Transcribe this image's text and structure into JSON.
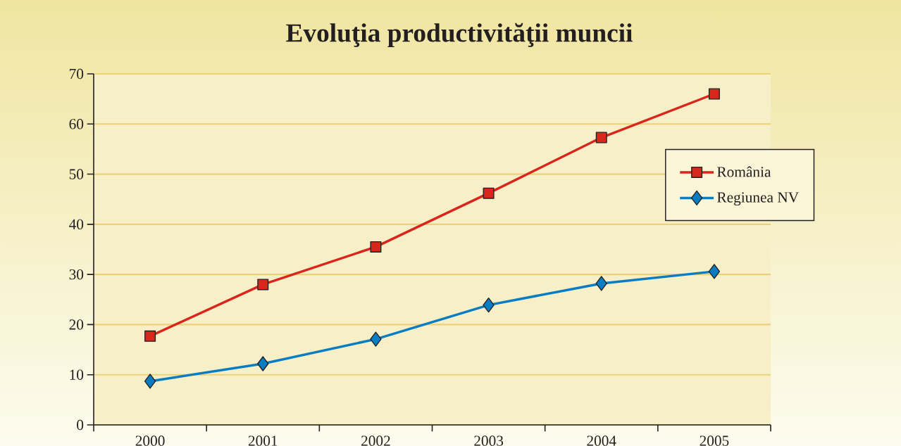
{
  "chart_data": {
    "type": "line",
    "title": "Evoluţia productivităţii muncii",
    "categories": [
      "2000",
      "2001",
      "2002",
      "2003",
      "2004",
      "2005"
    ],
    "series": [
      {
        "name": "România",
        "color": "#d9261c",
        "marker": "square",
        "values": [
          17.7,
          28.0,
          35.5,
          46.2,
          57.3,
          66.0
        ]
      },
      {
        "name": "Regiunea NV",
        "color": "#0a7dc2",
        "marker": "diamond",
        "values": [
          8.7,
          12.2,
          17.1,
          23.9,
          28.2,
          30.6
        ]
      }
    ],
    "ylim": [
      0,
      70
    ],
    "yticks": [
      0,
      10,
      20,
      30,
      40,
      50,
      60,
      70
    ],
    "grid": "y",
    "legend": "right",
    "line_style": "solid"
  }
}
